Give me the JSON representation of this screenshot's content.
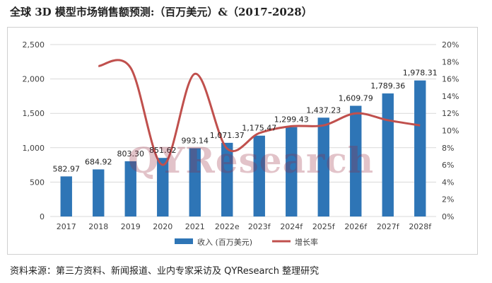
{
  "title": "全球 3D 模型市场销售额预测:（百万美元）&（2017-2028）",
  "source_text": "资料来源：第三方资料、新闻报道、业内专家采访及 QYResearch 整理研究",
  "watermark_text": "QYResearch",
  "colors": {
    "bar": "#2e75b6",
    "line": "#c0504d",
    "grid": "#d9d9d9",
    "axis_text": "#404040",
    "watermark": "#96283c"
  },
  "chart_data": {
    "type": "bar",
    "categories": [
      "2017",
      "2018",
      "2019",
      "2020",
      "2021",
      "2022e",
      "2023f",
      "2024f",
      "2025f",
      "2026f",
      "2027f",
      "2028f"
    ],
    "series": [
      {
        "name": "收入 (百万美元)",
        "type": "bar",
        "axis": "left",
        "values": [
          582.97,
          684.92,
          803.3,
          851.62,
          993.14,
          1071.37,
          1175.47,
          1299.43,
          1437.23,
          1609.79,
          1789.36,
          1978.31
        ],
        "labels": [
          "582.97",
          "684.92",
          "803.30",
          "851.62",
          "993.14",
          "1,071.37",
          "1,175.47",
          "1,299.43",
          "1,437.23",
          "1,609.79",
          "1,789.36",
          "1,978.31"
        ]
      },
      {
        "name": "增长率",
        "type": "line",
        "axis": "right",
        "values": [
          null,
          17.5,
          17.3,
          6.0,
          16.6,
          7.9,
          9.7,
          10.5,
          10.6,
          12.0,
          11.2,
          10.6
        ]
      }
    ],
    "y_left": {
      "min": 0,
      "max": 2500,
      "ticks": [
        "0",
        "500",
        "1,000",
        "1,500",
        "2,000",
        "2,500"
      ]
    },
    "y_right": {
      "min": 0,
      "max": 20,
      "ticks": [
        "0%",
        "2%",
        "4%",
        "6%",
        "8%",
        "10%",
        "12%",
        "14%",
        "16%",
        "18%",
        "20%"
      ]
    },
    "grid": true,
    "legend_position": "bottom"
  }
}
